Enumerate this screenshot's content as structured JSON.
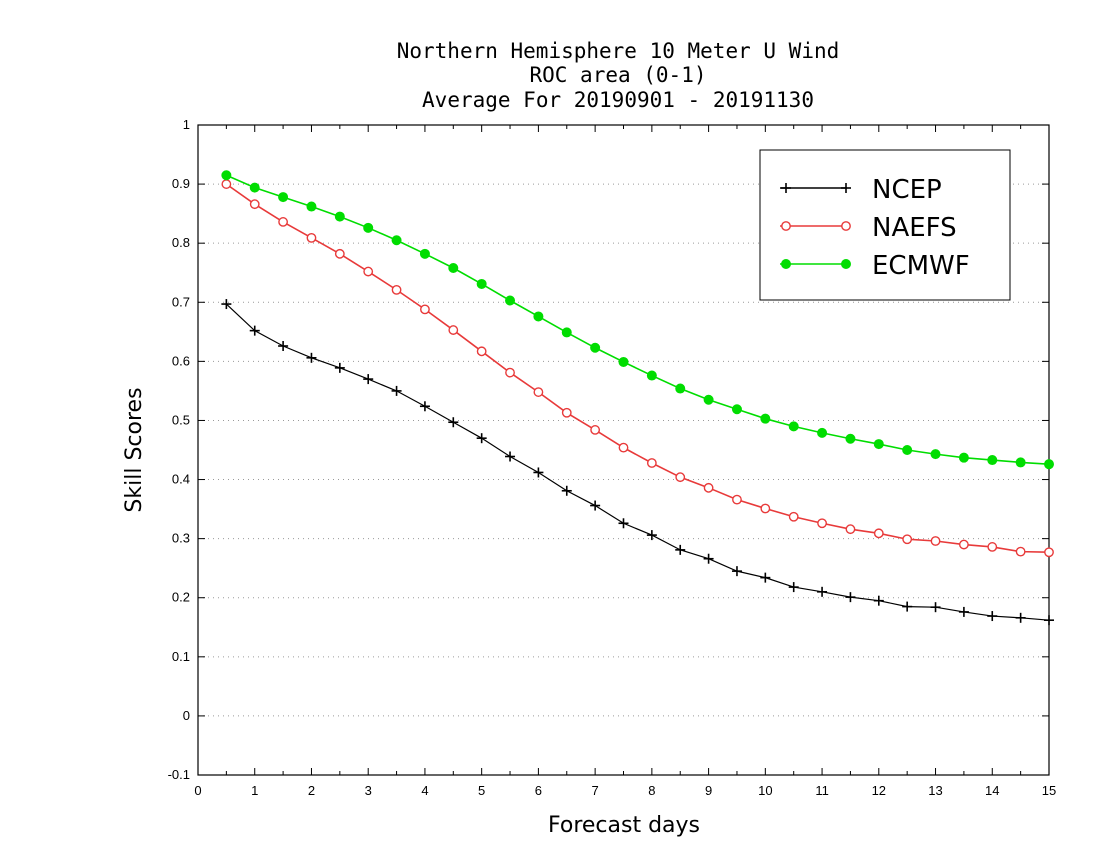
{
  "chart_data": {
    "type": "line",
    "title_lines": [
      "Northern Hemisphere 10 Meter U Wind",
      "ROC area (0-1)",
      "Average For 20190901 - 20191130"
    ],
    "xlabel": "Forecast days",
    "ylabel": "Skill Scores",
    "xlim": [
      0,
      15
    ],
    "ylim": [
      -0.1,
      1
    ],
    "x_ticks": [
      "0",
      "1",
      "2",
      "3",
      "4",
      "5",
      "6",
      "7",
      "8",
      "9",
      "10",
      "11",
      "12",
      "13",
      "14",
      "15"
    ],
    "y_ticks": [
      "-0.1",
      "0",
      "0.1",
      "0.2",
      "0.3",
      "0.4",
      "0.5",
      "0.6",
      "0.7",
      "0.8",
      "0.9",
      "1"
    ],
    "grid": "horizontal dotted",
    "legend_position": "top-right",
    "x": [
      0.5,
      1,
      1.5,
      2,
      2.5,
      3,
      3.5,
      4,
      4.5,
      5,
      5.5,
      6,
      6.5,
      7,
      7.5,
      8,
      8.5,
      9,
      9.5,
      10,
      10.5,
      11,
      11.5,
      12,
      12.5,
      13,
      13.5,
      14,
      14.5,
      15
    ],
    "series": [
      {
        "name": "NCEP",
        "color": "#000000",
        "marker": "plus",
        "values": [
          0.697,
          0.652,
          0.626,
          0.606,
          0.589,
          0.57,
          0.55,
          0.524,
          0.497,
          0.47,
          0.439,
          0.412,
          0.381,
          0.356,
          0.326,
          0.306,
          0.281,
          0.266,
          0.245,
          0.234,
          0.218,
          0.21,
          0.201,
          0.195,
          0.185,
          0.184,
          0.176,
          0.169,
          0.166,
          0.162
        ]
      },
      {
        "name": "NAEFS",
        "color": "#e83a3a",
        "marker": "open-circle",
        "values": [
          0.9,
          0.866,
          0.836,
          0.809,
          0.782,
          0.752,
          0.721,
          0.688,
          0.653,
          0.617,
          0.581,
          0.548,
          0.513,
          0.484,
          0.454,
          0.428,
          0.404,
          0.386,
          0.366,
          0.351,
          0.337,
          0.326,
          0.316,
          0.309,
          0.299,
          0.296,
          0.29,
          0.286,
          0.278,
          0.277
        ]
      },
      {
        "name": "ECMWF",
        "color": "#00dd00",
        "marker": "filled-circle",
        "values": [
          0.915,
          0.894,
          0.878,
          0.862,
          0.845,
          0.826,
          0.805,
          0.782,
          0.758,
          0.731,
          0.703,
          0.676,
          0.649,
          0.623,
          0.599,
          0.576,
          0.554,
          0.535,
          0.519,
          0.503,
          0.49,
          0.479,
          0.469,
          0.46,
          0.45,
          0.443,
          0.437,
          0.433,
          0.429,
          0.426
        ]
      }
    ]
  }
}
